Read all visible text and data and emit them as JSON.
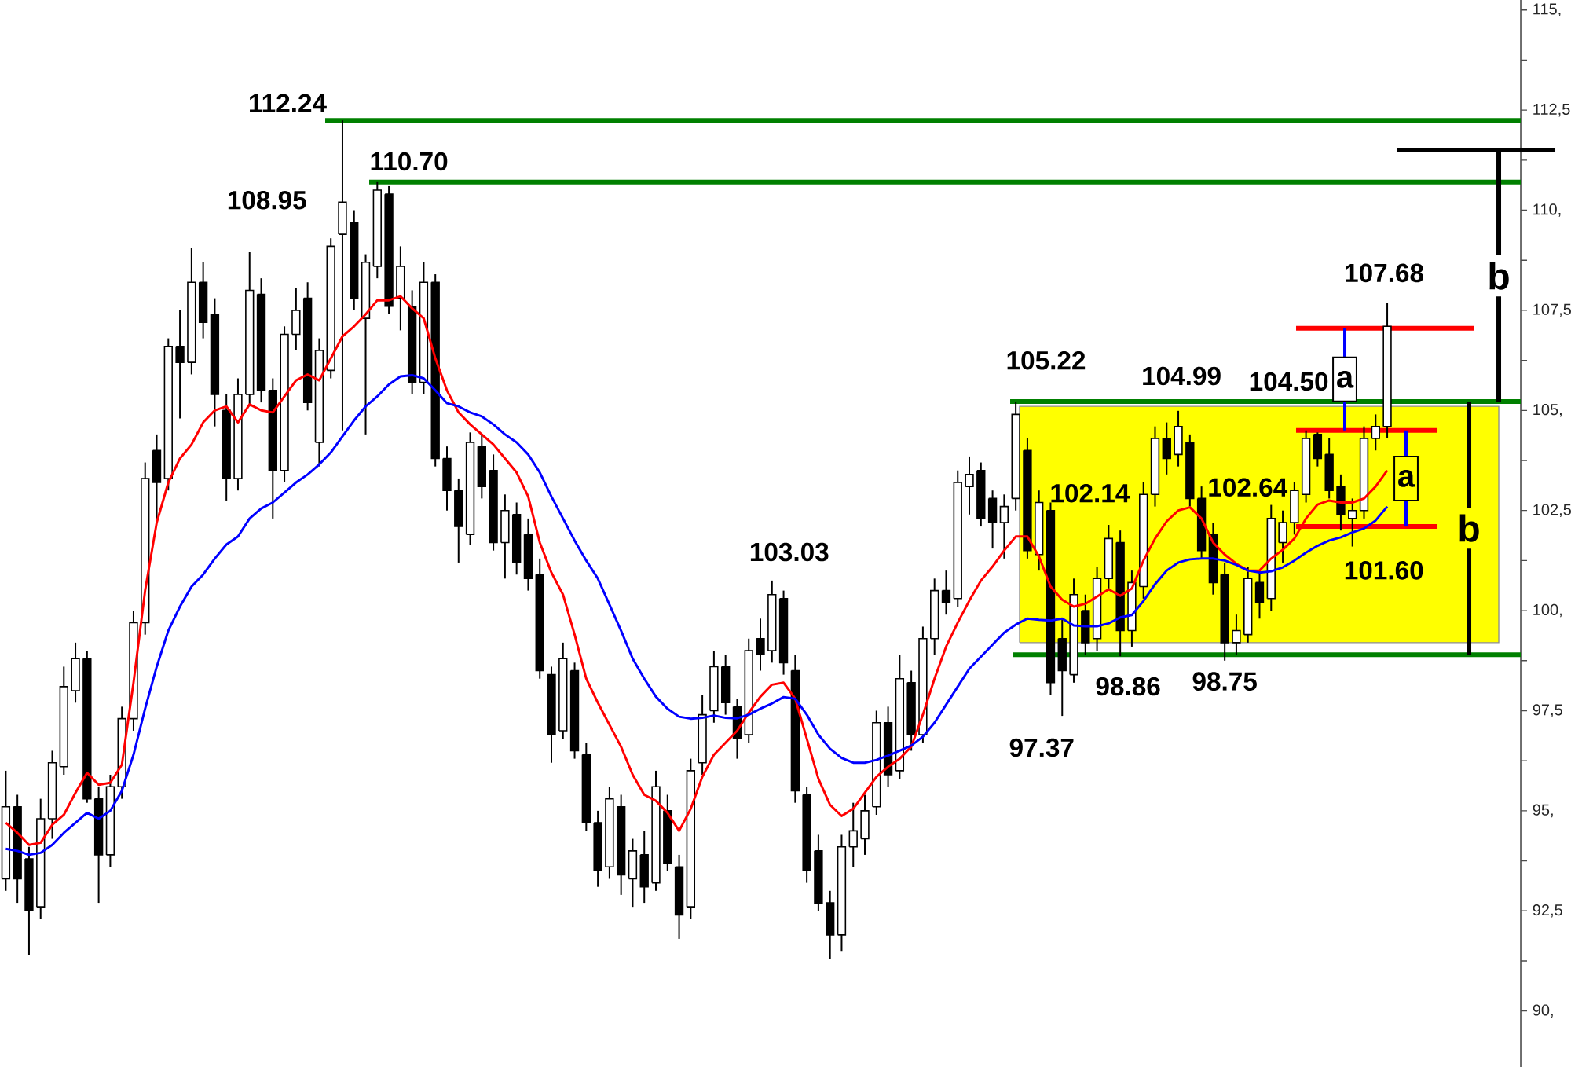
{
  "chart_data": {
    "type": "candlestick",
    "categories": [
      null,
      null,
      null,
      null,
      null,
      null,
      null,
      null,
      null,
      null,
      null,
      null,
      null,
      null,
      null,
      null,
      null,
      null,
      null,
      null,
      null,
      null,
      null,
      null,
      null,
      null,
      null,
      null,
      null,
      null,
      null,
      null,
      null,
      null,
      null,
      null,
      null,
      null,
      null,
      null,
      null,
      null,
      null,
      null,
      null,
      null,
      null,
      null,
      null,
      null,
      null,
      null,
      null,
      null,
      null,
      null,
      null,
      null,
      null,
      null,
      null,
      null,
      null,
      null,
      null,
      null,
      null,
      null,
      null,
      null,
      null,
      null,
      null,
      null,
      null,
      null,
      null,
      null,
      null,
      null,
      null,
      null,
      null,
      null,
      null,
      null,
      null,
      null,
      null,
      null,
      null,
      null,
      null,
      null,
      null,
      null,
      null,
      null,
      null,
      null,
      null,
      null,
      null,
      null,
      null,
      null,
      null,
      null,
      null,
      null,
      null,
      null,
      null,
      null,
      null,
      null,
      null,
      null,
      null,
      null,
      null,
      null,
      null,
      null,
      null,
      null,
      null,
      null,
      null,
      null,
      null
    ],
    "ohlc": [
      [
        93.3,
        96.0,
        93.0,
        95.1
      ],
      [
        95.1,
        95.4,
        92.7,
        93.3
      ],
      [
        93.8,
        94.1,
        91.4,
        92.5
      ],
      [
        92.6,
        95.3,
        92.3,
        94.8
      ],
      [
        94.8,
        96.5,
        94.3,
        96.2
      ],
      [
        96.1,
        98.6,
        95.9,
        98.1
      ],
      [
        98.0,
        99.2,
        97.7,
        98.8
      ],
      [
        98.8,
        99.0,
        95.2,
        95.3
      ],
      [
        95.3,
        95.6,
        92.7,
        93.9
      ],
      [
        93.9,
        95.9,
        93.6,
        95.6
      ],
      [
        95.6,
        97.6,
        95.3,
        97.3
      ],
      [
        97.3,
        100.0,
        97.0,
        99.7
      ],
      [
        99.7,
        103.7,
        99.4,
        103.3
      ],
      [
        104.0,
        104.4,
        102.3,
        103.2
      ],
      [
        103.3,
        106.8,
        103.0,
        106.6
      ],
      [
        106.6,
        107.5,
        104.8,
        106.2
      ],
      [
        106.2,
        109.05,
        105.9,
        108.2
      ],
      [
        108.2,
        108.7,
        106.8,
        107.2
      ],
      [
        107.4,
        107.8,
        104.6,
        105.4
      ],
      [
        105.0,
        105.4,
        102.75,
        103.3
      ],
      [
        103.3,
        105.8,
        103.0,
        105.4
      ],
      [
        105.4,
        108.95,
        105.1,
        108.0
      ],
      [
        107.9,
        108.3,
        105.2,
        105.5
      ],
      [
        105.5,
        105.8,
        102.3,
        103.5
      ],
      [
        103.5,
        107.1,
        103.2,
        106.9
      ],
      [
        106.9,
        108.05,
        106.5,
        107.5
      ],
      [
        107.8,
        108.2,
        105.0,
        105.2
      ],
      [
        104.2,
        106.8,
        103.6,
        106.5
      ],
      [
        106.0,
        109.3,
        105.8,
        109.1
      ],
      [
        109.4,
        112.24,
        104.5,
        110.2
      ],
      [
        109.7,
        110.0,
        107.5,
        107.8
      ],
      [
        107.3,
        108.9,
        104.4,
        108.7
      ],
      [
        108.6,
        110.7,
        108.3,
        110.5
      ],
      [
        110.4,
        110.6,
        107.4,
        107.6
      ],
      [
        107.8,
        109.1,
        107.0,
        108.6
      ],
      [
        107.6,
        108.0,
        105.4,
        105.7
      ],
      [
        105.7,
        108.7,
        105.4,
        108.2
      ],
      [
        108.2,
        108.4,
        103.6,
        103.8
      ],
      [
        103.8,
        104.1,
        102.5,
        103.0
      ],
      [
        103.0,
        103.3,
        101.2,
        102.1
      ],
      [
        101.9,
        104.45,
        101.65,
        104.2
      ],
      [
        104.1,
        104.4,
        102.8,
        103.1
      ],
      [
        103.5,
        103.9,
        101.5,
        101.7
      ],
      [
        101.7,
        102.9,
        100.8,
        102.5
      ],
      [
        102.4,
        102.7,
        100.9,
        101.2
      ],
      [
        101.9,
        102.3,
        100.5,
        100.8
      ],
      [
        100.9,
        101.3,
        98.3,
        98.5
      ],
      [
        98.4,
        98.6,
        96.2,
        96.9
      ],
      [
        97.0,
        99.2,
        96.8,
        98.8
      ],
      [
        98.5,
        98.7,
        96.3,
        96.5
      ],
      [
        96.4,
        96.7,
        94.5,
        94.7
      ],
      [
        94.7,
        95.0,
        93.1,
        93.5
      ],
      [
        93.6,
        95.6,
        93.3,
        95.3
      ],
      [
        95.1,
        95.4,
        92.9,
        93.4
      ],
      [
        93.3,
        94.3,
        92.6,
        94.0
      ],
      [
        93.9,
        94.5,
        92.7,
        93.1
      ],
      [
        93.2,
        96.0,
        93.0,
        95.6
      ],
      [
        95.0,
        95.4,
        93.5,
        93.7
      ],
      [
        93.6,
        93.9,
        91.8,
        92.4
      ],
      [
        92.6,
        96.3,
        92.3,
        96.0
      ],
      [
        96.2,
        97.9,
        95.9,
        97.4
      ],
      [
        97.5,
        99.0,
        97.2,
        98.6
      ],
      [
        98.6,
        98.9,
        97.4,
        97.7
      ],
      [
        97.6,
        97.8,
        96.3,
        96.8
      ],
      [
        96.9,
        99.3,
        96.7,
        99.0
      ],
      [
        99.3,
        99.8,
        98.5,
        98.9
      ],
      [
        99.0,
        100.75,
        98.7,
        100.4
      ],
      [
        100.3,
        100.5,
        98.4,
        98.7
      ],
      [
        98.5,
        98.9,
        95.2,
        95.5
      ],
      [
        95.4,
        95.6,
        93.2,
        93.5
      ],
      [
        94.0,
        94.4,
        92.5,
        92.7
      ],
      [
        92.7,
        93.0,
        91.3,
        91.9
      ],
      [
        91.9,
        94.4,
        91.5,
        94.1
      ],
      [
        94.1,
        95.2,
        93.6,
        94.5
      ],
      [
        94.3,
        95.4,
        93.9,
        95.0
      ],
      [
        95.1,
        97.5,
        94.9,
        97.2
      ],
      [
        97.2,
        97.6,
        95.6,
        95.9
      ],
      [
        96.0,
        98.9,
        95.8,
        98.3
      ],
      [
        98.2,
        98.5,
        96.5,
        96.9
      ],
      [
        96.9,
        99.6,
        96.7,
        99.3
      ],
      [
        99.3,
        100.8,
        98.9,
        100.5
      ],
      [
        100.5,
        101.0,
        99.9,
        100.2
      ],
      [
        100.3,
        103.5,
        100.1,
        103.2
      ],
      [
        103.1,
        103.85,
        102.4,
        103.4
      ],
      [
        103.5,
        103.7,
        102.1,
        102.3
      ],
      [
        102.8,
        103.0,
        101.55,
        102.2
      ],
      [
        102.2,
        102.9,
        101.3,
        102.6
      ],
      [
        102.8,
        105.22,
        102.5,
        104.9
      ],
      [
        104.0,
        104.3,
        101.3,
        101.5
      ],
      [
        101.4,
        103.0,
        101.0,
        102.7
      ],
      [
        102.5,
        102.7,
        97.9,
        98.2
      ],
      [
        99.3,
        99.8,
        97.37,
        98.5
      ],
      [
        98.4,
        100.8,
        98.2,
        100.4
      ],
      [
        100.0,
        100.4,
        98.9,
        99.2
      ],
      [
        99.3,
        101.1,
        99.0,
        100.8
      ],
      [
        100.8,
        102.14,
        100.5,
        101.8
      ],
      [
        101.7,
        102.0,
        98.86,
        99.5
      ],
      [
        99.5,
        101.0,
        99.1,
        100.7
      ],
      [
        100.6,
        103.2,
        100.3,
        102.9
      ],
      [
        102.9,
        104.6,
        102.6,
        104.3
      ],
      [
        104.3,
        104.7,
        103.4,
        103.8
      ],
      [
        103.9,
        104.99,
        103.6,
        104.6
      ],
      [
        104.2,
        104.4,
        102.6,
        102.8
      ],
      [
        102.8,
        103.1,
        101.3,
        101.5
      ],
      [
        101.9,
        102.2,
        100.4,
        100.7
      ],
      [
        100.9,
        101.2,
        98.75,
        99.2
      ],
      [
        99.2,
        99.9,
        98.9,
        99.5
      ],
      [
        99.4,
        101.1,
        99.2,
        100.8
      ],
      [
        100.7,
        101.0,
        99.8,
        100.2
      ],
      [
        100.3,
        102.64,
        100.0,
        102.3
      ],
      [
        101.7,
        102.5,
        101.2,
        102.2
      ],
      [
        102.2,
        103.2,
        101.9,
        103.0
      ],
      [
        102.9,
        104.5,
        102.7,
        104.3
      ],
      [
        104.4,
        104.45,
        103.6,
        103.8
      ],
      [
        103.9,
        104.3,
        102.8,
        103.0
      ],
      [
        103.1,
        103.4,
        102.0,
        102.4
      ],
      [
        102.3,
        102.8,
        101.6,
        102.5
      ],
      [
        102.5,
        104.6,
        102.3,
        104.3
      ],
      [
        104.3,
        104.9,
        104.0,
        104.6
      ],
      [
        104.6,
        107.68,
        104.3,
        107.1
      ],
      null,
      null,
      null,
      null,
      null,
      null,
      null,
      null,
      null,
      null,
      null
    ],
    "series": [
      {
        "type": "line",
        "color": "#ff0000",
        "values": [
          94.7,
          94.45,
          94.15,
          94.2,
          94.65,
          94.9,
          95.45,
          95.95,
          95.65,
          95.7,
          96.15,
          98.2,
          100.5,
          102.2,
          103.2,
          103.8,
          104.15,
          104.7,
          105.0,
          105.1,
          104.7,
          105.15,
          105.0,
          104.95,
          105.35,
          105.75,
          105.9,
          105.75,
          106.3,
          106.85,
          107.1,
          107.4,
          107.75,
          107.75,
          107.85,
          107.55,
          107.3,
          106.3,
          105.5,
          104.95,
          104.65,
          104.4,
          104.15,
          103.8,
          103.45,
          102.85,
          101.7,
          100.95,
          100.4,
          99.4,
          98.3,
          97.7,
          97.15,
          96.6,
          95.9,
          95.4,
          95.25,
          94.95,
          94.5,
          95.05,
          95.85,
          96.4,
          96.7,
          97.0,
          97.45,
          97.85,
          98.15,
          98.2,
          97.8,
          96.8,
          95.8,
          95.15,
          94.87,
          95.05,
          95.45,
          95.85,
          96.1,
          96.3,
          96.6,
          97.4,
          98.3,
          99.1,
          99.7,
          100.25,
          100.75,
          101.1,
          101.5,
          101.85,
          101.85,
          101.35,
          100.6,
          100.27,
          100.1,
          100.17,
          100.35,
          100.53,
          100.37,
          100.55,
          101.25,
          101.8,
          102.23,
          102.5,
          102.58,
          102.3,
          101.7,
          101.4,
          101.17,
          101.0,
          101.0,
          101.3,
          101.52,
          101.8,
          102.3,
          102.65,
          102.75,
          102.7,
          102.7,
          102.8,
          103.1,
          103.5,
          null,
          null,
          null,
          null,
          null,
          null,
          null,
          null,
          null,
          null,
          null
        ]
      },
      {
        "type": "line",
        "color": "#0000ff",
        "values": [
          94.05,
          94.0,
          93.9,
          93.95,
          94.15,
          94.45,
          94.7,
          94.95,
          94.8,
          95.0,
          95.5,
          96.4,
          97.55,
          98.6,
          99.5,
          100.1,
          100.6,
          100.9,
          101.3,
          101.65,
          101.85,
          102.3,
          102.55,
          102.7,
          102.95,
          103.2,
          103.4,
          103.65,
          103.95,
          104.35,
          104.75,
          105.1,
          105.35,
          105.65,
          105.85,
          105.88,
          105.8,
          105.5,
          105.18,
          105.1,
          104.95,
          104.85,
          104.65,
          104.4,
          104.2,
          103.9,
          103.45,
          102.85,
          102.3,
          101.75,
          101.25,
          100.8,
          100.15,
          99.5,
          98.8,
          98.3,
          97.85,
          97.55,
          97.35,
          97.3,
          97.32,
          97.38,
          97.32,
          97.31,
          97.4,
          97.55,
          97.68,
          97.84,
          97.8,
          97.4,
          96.9,
          96.55,
          96.32,
          96.2,
          96.2,
          96.27,
          96.38,
          96.5,
          96.63,
          96.85,
          97.2,
          97.65,
          98.1,
          98.55,
          98.85,
          99.15,
          99.45,
          99.65,
          99.8,
          99.77,
          99.75,
          99.8,
          99.63,
          99.61,
          99.61,
          99.68,
          99.83,
          99.89,
          100.24,
          100.66,
          101.0,
          101.2,
          101.28,
          101.3,
          101.3,
          101.25,
          101.14,
          101.0,
          100.95,
          100.98,
          101.08,
          101.25,
          101.45,
          101.62,
          101.75,
          101.83,
          101.95,
          102.05,
          102.25,
          102.6,
          null,
          null,
          null,
          null,
          null,
          null,
          null,
          null,
          null,
          null,
          null
        ]
      }
    ],
    "ylim": [
      88.6,
      115.25
    ],
    "yticks": [
      {
        "value": 90,
        "label": "90,"
      },
      {
        "value": 91.25,
        "label": null
      },
      {
        "value": 92.5,
        "label": "92,5"
      },
      {
        "value": 93.75,
        "label": null
      },
      {
        "value": 95,
        "label": "95,"
      },
      {
        "value": 96.25,
        "label": null
      },
      {
        "value": 97.5,
        "label": "97,5"
      },
      {
        "value": 98.75,
        "label": null
      },
      {
        "value": 100,
        "label": "100,"
      },
      {
        "value": 101.25,
        "label": null
      },
      {
        "value": 102.5,
        "label": "102,5"
      },
      {
        "value": 103.75,
        "label": null
      },
      {
        "value": 105,
        "label": "105,"
      },
      {
        "value": 106.25,
        "label": null
      },
      {
        "value": 107.5,
        "label": "107,5"
      },
      {
        "value": 108.75,
        "label": null
      },
      {
        "value": 110,
        "label": "110,"
      },
      {
        "value": 111.25,
        "label": null
      },
      {
        "value": 112.5,
        "label": "112,5"
      },
      {
        "value": 113.75,
        "label": null
      },
      {
        "value": 115,
        "label": "115,"
      }
    ],
    "tick_labels": "y",
    "bands": [
      {
        "axis": "y",
        "from": 99.2,
        "to": 105.1,
        "color": "#ffff00"
      }
    ],
    "ref_lines": [
      {
        "axis": "y",
        "value": 112.24,
        "label": "112.24",
        "color": "#008000"
      },
      {
        "axis": "y",
        "value": 110.7,
        "label": "110.70",
        "color": "#008000"
      },
      {
        "axis": "y",
        "value": 105.22,
        "label": "105.22",
        "color": "#008000"
      },
      {
        "axis": "y",
        "value": 98.9,
        "color": "#008000"
      },
      {
        "axis": "y",
        "value": 107.05,
        "color": "#ff0000"
      },
      {
        "axis": "y",
        "value": 104.5,
        "color": "#ff0000"
      },
      {
        "axis": "y",
        "value": 102.1,
        "color": "#ff0000"
      },
      {
        "axis": "y",
        "value": 111.5,
        "color": "#000000"
      }
    ],
    "annotations": [
      "108.95",
      "103.03",
      "104.99",
      "102.14",
      "97.37",
      "98.86",
      "98.75",
      "102.64",
      "104.50",
      "107.68",
      "101.60",
      "a",
      "a",
      "b",
      "b"
    ]
  }
}
